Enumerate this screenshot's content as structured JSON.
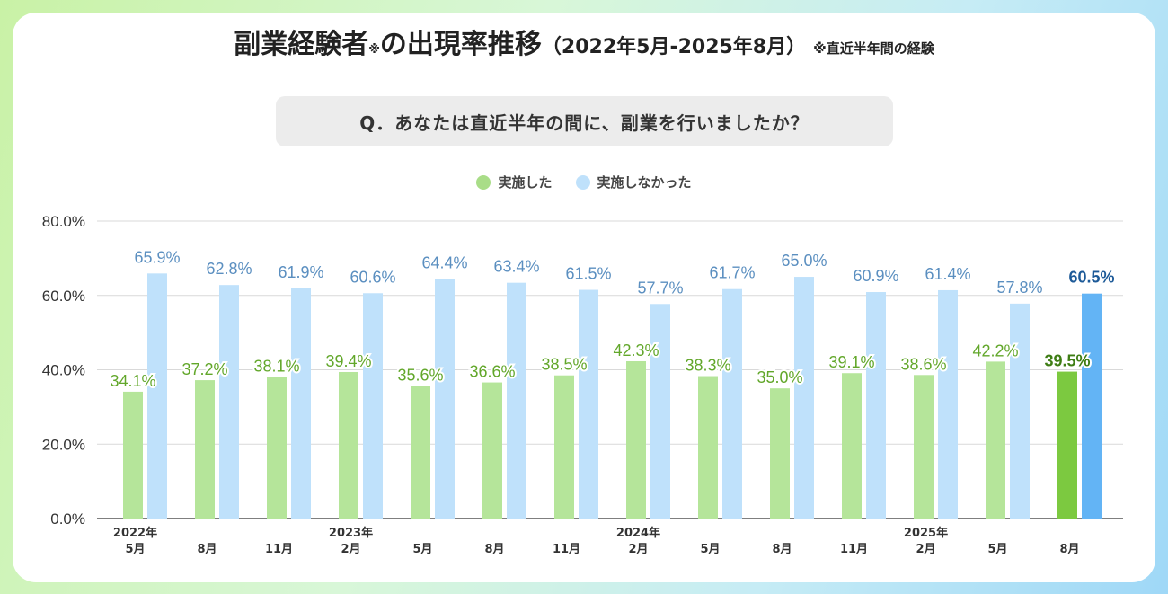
{
  "title": {
    "main_before": "副業経験者",
    "mark": "※",
    "main_after": "の出現率推移",
    "period": "（2022年5月-2025年8月）",
    "note": "※直近半年間の経験"
  },
  "question": "Q．あなたは直近半年の間に、副業を行いましたか？",
  "colors": {
    "did": "#b5e59a",
    "did_highlight": "#7cc940",
    "did_label": "#62a72a",
    "did_label_highlight": "#3e7d14",
    "not": "#bfe1fb",
    "not_highlight": "#63b4f5",
    "not_label": "#5b8fc0",
    "not_label_highlight": "#1d5a98"
  },
  "chart_data": {
    "type": "bar",
    "categories": [
      [
        "2022年",
        "5月"
      ],
      [
        "",
        "8月"
      ],
      [
        "",
        "11月"
      ],
      [
        "2023年",
        "2月"
      ],
      [
        "",
        "5月"
      ],
      [
        "",
        "8月"
      ],
      [
        "",
        "11月"
      ],
      [
        "2024年",
        "2月"
      ],
      [
        "",
        "5月"
      ],
      [
        "",
        "8月"
      ],
      [
        "",
        "11月"
      ],
      [
        "2025年",
        "2月"
      ],
      [
        "",
        "5月"
      ],
      [
        "",
        "8月"
      ]
    ],
    "series": [
      {
        "name": "実施した",
        "values": [
          34.1,
          37.2,
          38.1,
          39.4,
          35.6,
          36.6,
          38.5,
          42.3,
          38.3,
          35.0,
          39.1,
          38.6,
          42.2,
          39.5
        ],
        "labels": [
          "34.1%",
          "37.2%",
          "38.1%",
          "39.4%",
          "35.6%",
          "36.6%",
          "38.5%",
          "42.3%",
          "38.3%",
          "35.0%",
          "39.1%",
          "38.6%",
          "42.2%",
          "39.5%"
        ]
      },
      {
        "name": "実施しなかった",
        "values": [
          65.9,
          62.8,
          61.9,
          60.6,
          64.4,
          63.4,
          61.5,
          57.7,
          61.7,
          65.0,
          60.9,
          61.4,
          57.8,
          60.5
        ],
        "labels": [
          "65.9%",
          "62.8%",
          "61.9%",
          "60.6%",
          "64.4%",
          "63.4%",
          "61.5%",
          "57.7%",
          "61.7%",
          "65.0%",
          "60.9%",
          "61.4%",
          "57.8%",
          "60.5%"
        ]
      }
    ],
    "highlight_index": 13,
    "yticks": [
      "0.0%",
      "20.0%",
      "40.0%",
      "60.0%",
      "80.0%"
    ],
    "ylim": [
      0,
      80
    ],
    "legend": "top-center",
    "grid": true
  }
}
